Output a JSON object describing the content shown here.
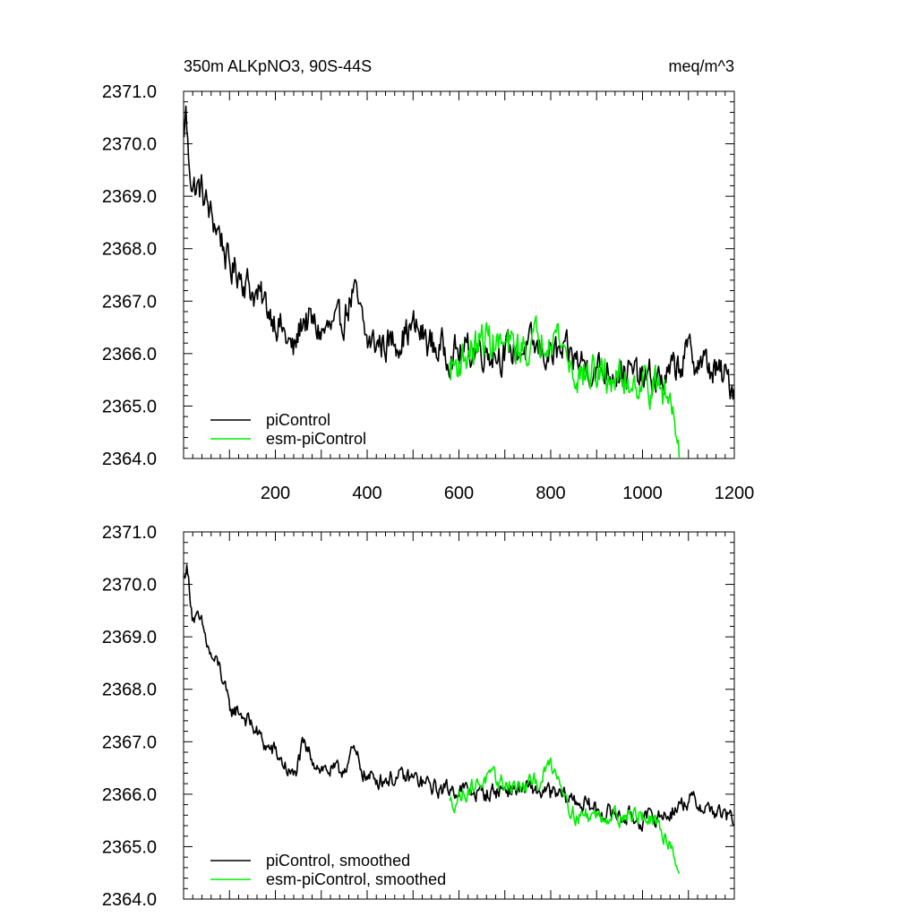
{
  "chart_data": [
    {
      "type": "line",
      "title_left": "350m ALKpNO3, 90S-44S",
      "title_right": "meq/m^3",
      "xlim": [
        0,
        1200
      ],
      "ylim": [
        2364.0,
        2371.0
      ],
      "x_ticks": [
        200,
        400,
        600,
        800,
        1000,
        1200
      ],
      "y_ticks": [
        "2371.0",
        "2370.0",
        "2369.0",
        "2368.0",
        "2367.0",
        "2366.0",
        "2365.0",
        "2364.0"
      ],
      "legend": {
        "position": "bottom-left",
        "entries": [
          "piControl",
          "esm-piControl"
        ]
      },
      "series": [
        {
          "name": "piControl",
          "color": "#000000",
          "x_range": [
            1,
            1200
          ],
          "anchors": [
            [
              1,
              2370.0
            ],
            [
              4,
              2370.8
            ],
            [
              10,
              2369.8
            ],
            [
              20,
              2369.2
            ],
            [
              40,
              2369.1
            ],
            [
              60,
              2368.6
            ],
            [
              80,
              2368.3
            ],
            [
              100,
              2367.6
            ],
            [
              120,
              2367.6
            ],
            [
              150,
              2367.2
            ],
            [
              180,
              2366.9
            ],
            [
              200,
              2366.7
            ],
            [
              240,
              2366.0
            ],
            [
              260,
              2366.7
            ],
            [
              300,
              2366.4
            ],
            [
              340,
              2366.5
            ],
            [
              370,
              2367.2
            ],
            [
              400,
              2366.2
            ],
            [
              450,
              2366.2
            ],
            [
              500,
              2366.5
            ],
            [
              550,
              2366.1
            ],
            [
              600,
              2366.0
            ],
            [
              650,
              2366.1
            ],
            [
              700,
              2366.0
            ],
            [
              750,
              2366.1
            ],
            [
              800,
              2366.0
            ],
            [
              850,
              2365.9
            ],
            [
              900,
              2365.7
            ],
            [
              950,
              2365.7
            ],
            [
              1000,
              2365.5
            ],
            [
              1050,
              2365.5
            ],
            [
              1100,
              2366.0
            ],
            [
              1150,
              2365.7
            ],
            [
              1200,
              2365.4
            ]
          ],
          "noise_amplitude": 0.28
        },
        {
          "name": "esm-piControl",
          "color": "#00ee00",
          "x_range": [
            580,
            1080
          ],
          "anchors": [
            [
              580,
              2365.7
            ],
            [
              620,
              2366.0
            ],
            [
              660,
              2366.3
            ],
            [
              700,
              2366.1
            ],
            [
              740,
              2366.1
            ],
            [
              780,
              2366.3
            ],
            [
              800,
              2366.5
            ],
            [
              820,
              2366.3
            ],
            [
              850,
              2365.6
            ],
            [
              900,
              2365.6
            ],
            [
              950,
              2365.5
            ],
            [
              1000,
              2365.5
            ],
            [
              1040,
              2365.3
            ],
            [
              1060,
              2365.1
            ],
            [
              1075,
              2364.7
            ],
            [
              1080,
              2364.2
            ]
          ],
          "noise_amplitude": 0.3
        }
      ]
    },
    {
      "type": "line",
      "xlim": [
        0,
        1200
      ],
      "ylim": [
        2364.0,
        2371.0
      ],
      "y_ticks": [
        "2371.0",
        "2370.0",
        "2369.0",
        "2368.0",
        "2367.0",
        "2366.0",
        "2365.0",
        "2364.0"
      ],
      "legend": {
        "position": "bottom-left",
        "entries": [
          "piControl, smoothed",
          "esm-piControl, smoothed"
        ]
      },
      "series": [
        {
          "name": "piControl, smoothed",
          "color": "#000000",
          "x_range": [
            1,
            1200
          ],
          "anchors": [
            [
              1,
              2370.1
            ],
            [
              6,
              2370.4
            ],
            [
              20,
              2369.4
            ],
            [
              40,
              2369.2
            ],
            [
              60,
              2368.6
            ],
            [
              80,
              2368.4
            ],
            [
              100,
              2367.6
            ],
            [
              120,
              2367.6
            ],
            [
              150,
              2367.3
            ],
            [
              180,
              2366.9
            ],
            [
              200,
              2366.8
            ],
            [
              240,
              2366.3
            ],
            [
              260,
              2366.9
            ],
            [
              300,
              2366.5
            ],
            [
              340,
              2366.4
            ],
            [
              370,
              2366.8
            ],
            [
              400,
              2366.3
            ],
            [
              450,
              2366.3
            ],
            [
              500,
              2366.3
            ],
            [
              550,
              2366.1
            ],
            [
              600,
              2366.1
            ],
            [
              650,
              2366.0
            ],
            [
              700,
              2366.1
            ],
            [
              750,
              2366.1
            ],
            [
              800,
              2366.0
            ],
            [
              850,
              2365.9
            ],
            [
              900,
              2365.7
            ],
            [
              950,
              2365.6
            ],
            [
              1000,
              2365.5
            ],
            [
              1050,
              2365.6
            ],
            [
              1100,
              2365.9
            ],
            [
              1150,
              2365.7
            ],
            [
              1200,
              2365.5
            ]
          ],
          "noise_amplitude": 0.14
        },
        {
          "name": "esm-piControl, smoothed",
          "color": "#00ee00",
          "x_range": [
            580,
            1080
          ],
          "anchors": [
            [
              580,
              2365.8
            ],
            [
              620,
              2366.1
            ],
            [
              660,
              2366.3
            ],
            [
              700,
              2366.2
            ],
            [
              740,
              2366.1
            ],
            [
              780,
              2366.3
            ],
            [
              800,
              2366.6
            ],
            [
              820,
              2366.3
            ],
            [
              850,
              2365.6
            ],
            [
              900,
              2365.6
            ],
            [
              950,
              2365.6
            ],
            [
              1000,
              2365.6
            ],
            [
              1040,
              2365.3
            ],
            [
              1060,
              2365.1
            ],
            [
              1075,
              2364.7
            ],
            [
              1080,
              2364.5
            ]
          ],
          "noise_amplitude": 0.14
        }
      ]
    }
  ]
}
